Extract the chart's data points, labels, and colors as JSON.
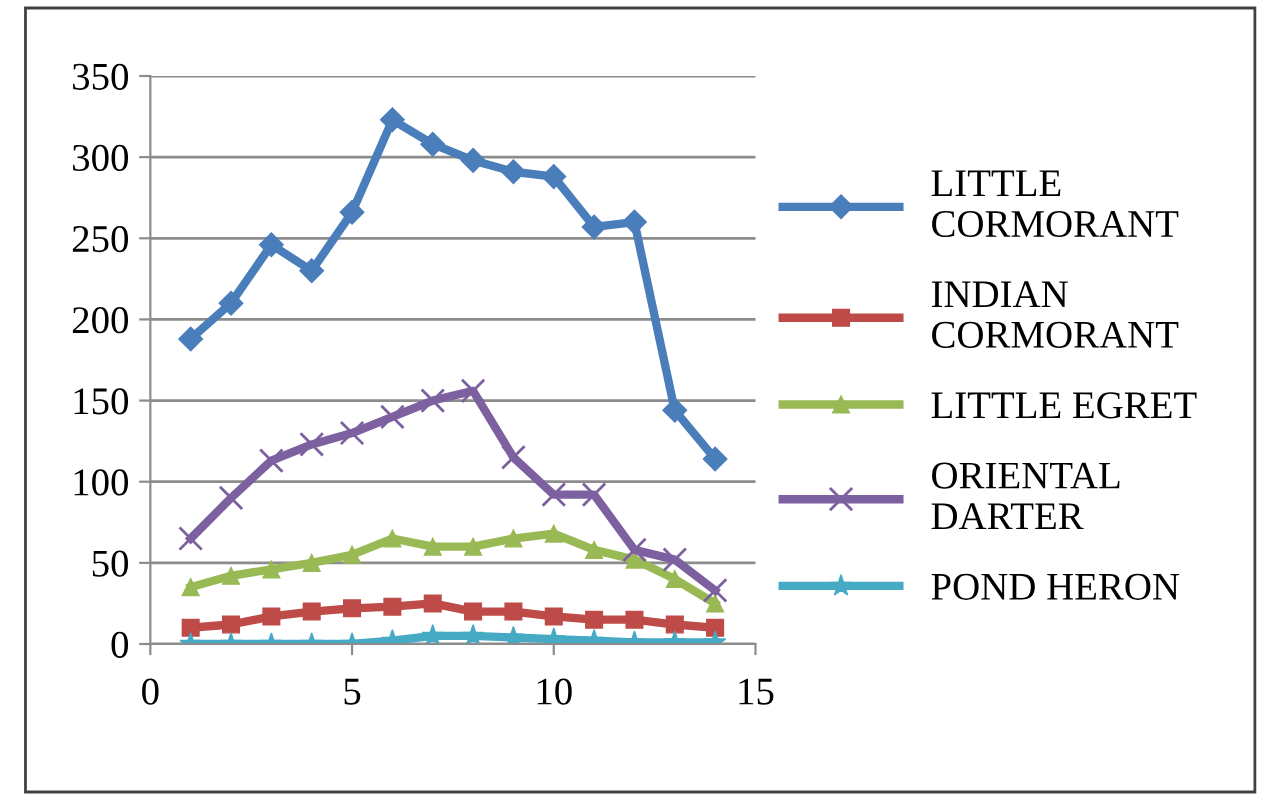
{
  "chart_data": {
    "type": "line",
    "x": [
      1,
      2,
      3,
      4,
      5,
      6,
      7,
      8,
      9,
      10,
      11,
      12,
      13,
      14
    ],
    "xlim": [
      0,
      15
    ],
    "xticks": [
      0,
      5,
      10,
      15
    ],
    "ylim": [
      0,
      350
    ],
    "yticks": [
      0,
      50,
      100,
      150,
      200,
      250,
      300,
      350
    ],
    "grid": "y",
    "legend": "right",
    "series": [
      {
        "name": "LITTLE CORMORANT",
        "color": "#4a7ebb",
        "marker": "diamond",
        "values": [
          188,
          210,
          246,
          230,
          266,
          323,
          308,
          298,
          291,
          288,
          257,
          260,
          144,
          114
        ]
      },
      {
        "name": "INDIAN CORMORANT",
        "color": "#be4b48",
        "marker": "square",
        "values": [
          10,
          12,
          17,
          20,
          22,
          23,
          25,
          20,
          20,
          17,
          15,
          15,
          12,
          10
        ]
      },
      {
        "name": "LITTLE EGRET",
        "color": "#98b954",
        "marker": "triangle",
        "values": [
          35,
          42,
          46,
          50,
          55,
          65,
          60,
          60,
          65,
          68,
          58,
          52,
          40,
          25
        ]
      },
      {
        "name": "ORIENTAL DARTER",
        "color": "#7d60a0",
        "marker": "cross",
        "values": [
          65,
          90,
          113,
          123,
          130,
          140,
          150,
          156,
          115,
          92,
          92,
          58,
          52,
          33
        ]
      },
      {
        "name": "POND HERON",
        "color": "#46aac5",
        "marker": "star",
        "values": [
          0,
          0,
          0,
          0,
          0,
          2,
          5,
          5,
          4,
          3,
          2,
          1,
          1,
          1
        ]
      }
    ]
  }
}
